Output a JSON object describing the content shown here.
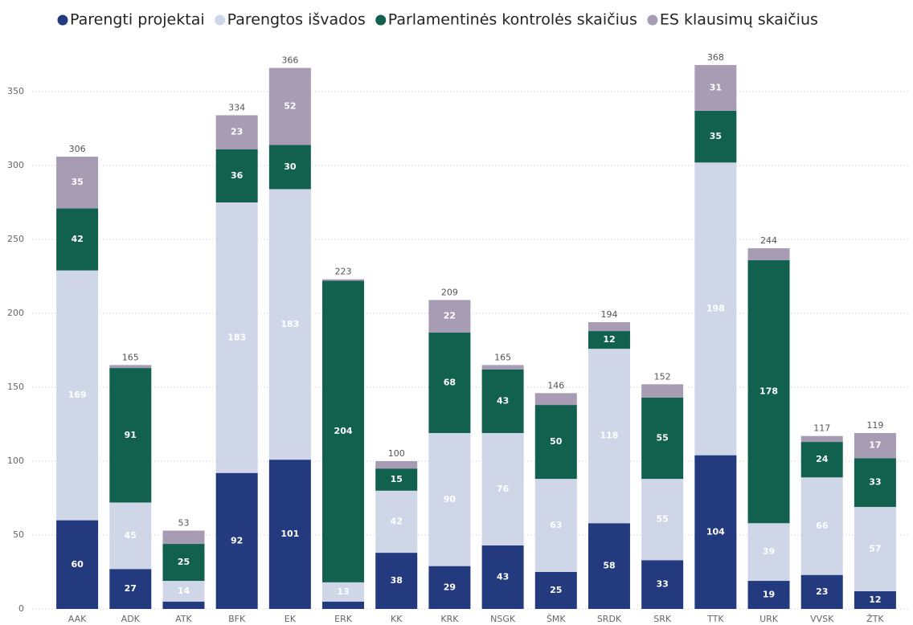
{
  "chart_data": {
    "type": "stacked_bar",
    "categories": [
      "AAK",
      "ADK",
      "ATK",
      "BFK",
      "EK",
      "ERK",
      "KK",
      "KRK",
      "NSGK",
      "ŠMK",
      "SRDK",
      "SRK",
      "TTK",
      "URK",
      "VVSK",
      "ŽTK"
    ],
    "series": [
      {
        "name": "Parengti projektai",
        "color": "#233a7e",
        "values": [
          60,
          27,
          5,
          92,
          101,
          5,
          38,
          29,
          43,
          25,
          58,
          33,
          104,
          19,
          23,
          12
        ],
        "value_labels": [
          "60",
          "27",
          null,
          "92",
          "101",
          null,
          "38",
          "29",
          "43",
          "25",
          "58",
          "33",
          "104",
          "19",
          "23",
          "12"
        ]
      },
      {
        "name": "Parengtos išvados",
        "color": "#cfd6e8",
        "values": [
          169,
          45,
          14,
          183,
          183,
          13,
          42,
          90,
          76,
          63,
          118,
          55,
          198,
          39,
          66,
          57
        ],
        "value_labels": [
          "169",
          "45",
          "14",
          "183",
          "183",
          "13",
          "42",
          "90",
          "76",
          "63",
          "118",
          "55",
          "198",
          "39",
          "66",
          "57"
        ]
      },
      {
        "name": "Parlamentinės kontrolės skaičius",
        "color": "#12614f",
        "values": [
          42,
          91,
          25,
          36,
          30,
          204,
          15,
          68,
          43,
          50,
          12,
          55,
          35,
          178,
          24,
          33
        ],
        "value_labels": [
          "42",
          "91",
          "25",
          "36",
          "30",
          "204",
          "15",
          "68",
          "43",
          "50",
          "12",
          "55",
          "35",
          "178",
          "24",
          "33"
        ]
      },
      {
        "name": "ES klausimų skaičius",
        "color": "#a89cb4",
        "values": [
          35,
          2,
          9,
          23,
          52,
          1,
          5,
          22,
          3,
          8,
          6,
          9,
          31,
          8,
          4,
          17
        ],
        "value_labels": [
          "35",
          null,
          null,
          "23",
          "52",
          null,
          null,
          "22",
          null,
          null,
          null,
          null,
          "31",
          null,
          null,
          "17"
        ]
      }
    ],
    "totals": [
      306,
      165,
      53,
      334,
      366,
      223,
      100,
      209,
      165,
      146,
      194,
      152,
      368,
      244,
      117,
      119
    ],
    "ylim": [
      0,
      380
    ],
    "yticks": [
      0,
      50,
      100,
      150,
      200,
      250,
      300,
      350
    ],
    "grid": true
  }
}
